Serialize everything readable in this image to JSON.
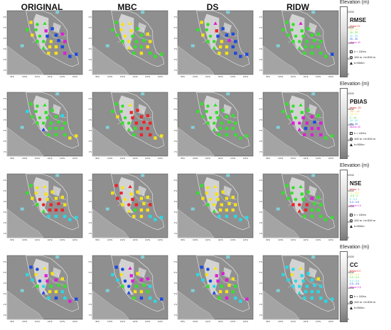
{
  "columns": [
    "ORIGINAL",
    "MBC",
    "DS",
    "RIDW"
  ],
  "elevation_title": "Elevation (m)",
  "elevation_ticks": [
    "2000",
    "1500",
    "1000",
    "500",
    "0"
  ],
  "lat_ticks": [
    "6°N",
    "5°N",
    "4°N",
    "3°N",
    "2°N",
    "1°N"
  ],
  "lon_ticks": [
    "99°E",
    "100°E",
    "101°E",
    "102°E",
    "103°E",
    "104°E"
  ],
  "shape_legend": [
    "h < 100m",
    "100 m <h<500 m",
    "h>500m"
  ],
  "colors": {
    "red": "#e8262b",
    "yellow": "#f4e21a",
    "green": "#35e02c",
    "cyan": "#2ad9e4",
    "blue": "#1c49e2",
    "magenta": "#dc1fd6",
    "orange": "#f59b20"
  },
  "rows": [
    {
      "metric": "RMSE",
      "classes": [
        {
          "label": "below 10",
          "color": "red"
        },
        {
          "label": "10 - 15",
          "color": "yellow"
        },
        {
          "label": "15 - 20",
          "color": "green"
        },
        {
          "label": "20 - 25",
          "color": "cyan"
        },
        {
          "label": "25 - 30",
          "color": "blue"
        },
        {
          "label": "above 30",
          "color": "magenta"
        }
      ]
    },
    {
      "metric": "PBIAS",
      "classes": [
        {
          "label": "below -20",
          "color": "red"
        },
        {
          "label": "-20 - -10",
          "color": "orange"
        },
        {
          "label": "-10 - 0",
          "color": "yellow"
        },
        {
          "label": "0 - 10",
          "color": "green"
        },
        {
          "label": "10 - 20",
          "color": "cyan"
        },
        {
          "label": "20 - 30",
          "color": "blue"
        },
        {
          "label": "above 30",
          "color": "magenta"
        }
      ]
    },
    {
      "metric": "NSE",
      "classes": [
        {
          "label": "below -1",
          "color": "red"
        },
        {
          "label": "-1 - -0.5",
          "color": "yellow"
        },
        {
          "label": "-0.5 - 0",
          "color": "green"
        },
        {
          "label": "0 - 0.3",
          "color": "cyan"
        },
        {
          "label": "0.3 - 0.5",
          "color": "blue"
        },
        {
          "label": "above 0.5",
          "color": "magenta"
        }
      ]
    },
    {
      "metric": "CC",
      "classes": [
        {
          "label": "below 0.2",
          "color": "red"
        },
        {
          "label": "0.2 - 0.3",
          "color": "yellow"
        },
        {
          "label": "0.3 - 0.4",
          "color": "green"
        },
        {
          "label": "0.4 - 0.5",
          "color": "cyan"
        },
        {
          "label": "0.5 - 0.6",
          "color": "blue"
        },
        {
          "label": "above 0.6",
          "color": "magenta"
        }
      ]
    }
  ],
  "chart_data": {
    "type": "scatter",
    "stations": [
      {
        "lon": 100.5,
        "lat": 5.5,
        "elev": "low"
      },
      {
        "lon": 101.0,
        "lat": 5.3,
        "elev": "mid"
      },
      {
        "lon": 101.6,
        "lat": 5.4,
        "elev": "high"
      },
      {
        "lon": 100.2,
        "lat": 4.8,
        "elev": "low"
      },
      {
        "lon": 100.9,
        "lat": 4.8,
        "elev": "mid"
      },
      {
        "lon": 101.7,
        "lat": 4.7,
        "elev": "low"
      },
      {
        "lon": 102.2,
        "lat": 4.9,
        "elev": "low"
      },
      {
        "lon": 100.6,
        "lat": 4.3,
        "elev": "low"
      },
      {
        "lon": 101.2,
        "lat": 4.2,
        "elev": "mid"
      },
      {
        "lon": 101.8,
        "lat": 4.2,
        "elev": "low"
      },
      {
        "lon": 102.5,
        "lat": 4.3,
        "elev": "low"
      },
      {
        "lon": 103.0,
        "lat": 4.4,
        "elev": "low"
      },
      {
        "lon": 101.0,
        "lat": 3.7,
        "elev": "low"
      },
      {
        "lon": 101.5,
        "lat": 3.7,
        "elev": "mid"
      },
      {
        "lon": 102.1,
        "lat": 3.7,
        "elev": "low"
      },
      {
        "lon": 102.7,
        "lat": 3.8,
        "elev": "low"
      },
      {
        "lon": 103.2,
        "lat": 3.7,
        "elev": "low"
      },
      {
        "lon": 101.5,
        "lat": 3.1,
        "elev": "high"
      },
      {
        "lon": 102.0,
        "lat": 3.2,
        "elev": "low"
      },
      {
        "lon": 102.5,
        "lat": 3.2,
        "elev": "low"
      },
      {
        "lon": 103.0,
        "lat": 3.2,
        "elev": "low"
      },
      {
        "lon": 101.9,
        "lat": 2.6,
        "elev": "low"
      },
      {
        "lon": 102.5,
        "lat": 2.6,
        "elev": "low"
      },
      {
        "lon": 103.2,
        "lat": 2.6,
        "elev": "low"
      },
      {
        "lon": 103.6,
        "lat": 2.3,
        "elev": "low"
      },
      {
        "lon": 104.1,
        "lat": 2.5,
        "elev": "low"
      }
    ],
    "panels": [
      {
        "metric": "RMSE",
        "product": "ORIGINAL",
        "values": [
          "yellow",
          "green",
          "green",
          "green",
          "green",
          "magenta",
          "blue",
          "yellow",
          "green",
          "blue",
          "blue",
          "magenta",
          "green",
          "green",
          "yellow",
          "blue",
          "magenta",
          "green",
          "yellow",
          "yellow",
          "blue",
          "yellow",
          "yellow",
          "magenta",
          "blue",
          "blue"
        ]
      },
      {
        "metric": "RMSE",
        "product": "MBC",
        "values": [
          "green",
          "yellow",
          "yellow",
          "green",
          "yellow",
          "yellow",
          "green",
          "green",
          "yellow",
          "green",
          "green",
          "yellow",
          "green",
          "yellow",
          "green",
          "green",
          "yellow",
          "yellow",
          "green",
          "green",
          "yellow",
          "green",
          "yellow",
          "green",
          "green",
          "green"
        ]
      },
      {
        "metric": "RMSE",
        "product": "DS",
        "values": [
          "yellow",
          "green",
          "magenta",
          "green",
          "green",
          "red",
          "blue",
          "yellow",
          "green",
          "blue",
          "blue",
          "blue",
          "green",
          "green",
          "yellow",
          "magenta",
          "blue",
          "green",
          "yellow",
          "yellow",
          "blue",
          "yellow",
          "yellow",
          "blue",
          "blue",
          "blue"
        ]
      },
      {
        "metric": "RMSE",
        "product": "RIDW",
        "values": [
          "green",
          "green",
          "magenta",
          "green",
          "green",
          "green",
          "green",
          "green",
          "green",
          "green",
          "green",
          "green",
          "green",
          "green",
          "green",
          "green",
          "green",
          "green",
          "green",
          "green",
          "green",
          "green",
          "green",
          "green",
          "green",
          "blue"
        ]
      },
      {
        "metric": "PBIAS",
        "product": "ORIGINAL",
        "values": [
          "green",
          "green",
          "green",
          "cyan",
          "green",
          "green",
          "green",
          "green",
          "green",
          "green",
          "green",
          "cyan",
          "green",
          "green",
          "green",
          "green",
          "green",
          "blue",
          "green",
          "green",
          "green",
          "green",
          "green",
          "green",
          "yellow",
          "yellow"
        ]
      },
      {
        "metric": "PBIAS",
        "product": "MBC",
        "values": [
          "green",
          "green",
          "yellow",
          "green",
          "green",
          "red",
          "red",
          "yellow",
          "green",
          "red",
          "red",
          "red",
          "green",
          "green",
          "red",
          "red",
          "red",
          "green",
          "green",
          "red",
          "red",
          "green",
          "red",
          "red",
          "yellow",
          "yellow"
        ]
      },
      {
        "metric": "PBIAS",
        "product": "DS",
        "values": [
          "green",
          "green",
          "green",
          "green",
          "green",
          "green",
          "green",
          "green",
          "green",
          "green",
          "green",
          "green",
          "green",
          "green",
          "green",
          "green",
          "green",
          "green",
          "green",
          "green",
          "green",
          "green",
          "green",
          "green",
          "green",
          "green"
        ]
      },
      {
        "metric": "PBIAS",
        "product": "RIDW",
        "values": [
          "green",
          "green",
          "green",
          "green",
          "green",
          "green",
          "green",
          "green",
          "green",
          "magenta",
          "magenta",
          "green",
          "magenta",
          "magenta",
          "magenta",
          "blue",
          "magenta",
          "magenta",
          "blue",
          "magenta",
          "magenta",
          "magenta",
          "magenta",
          "magenta",
          "green",
          "green"
        ]
      },
      {
        "metric": "NSE",
        "product": "ORIGINAL",
        "values": [
          "green",
          "yellow",
          "yellow",
          "green",
          "yellow",
          "yellow",
          "yellow",
          "yellow",
          "red",
          "yellow",
          "yellow",
          "yellow",
          "green",
          "red",
          "red",
          "red",
          "yellow",
          "green",
          "red",
          "red",
          "red",
          "cyan",
          "cyan",
          "cyan",
          "cyan",
          "cyan"
        ]
      },
      {
        "metric": "NSE",
        "product": "MBC",
        "values": [
          "red",
          "yellow",
          "red",
          "yellow",
          "red",
          "yellow",
          "yellow",
          "red",
          "yellow",
          "red",
          "yellow",
          "yellow",
          "yellow",
          "red",
          "red",
          "yellow",
          "red",
          "yellow",
          "green",
          "yellow",
          "yellow",
          "yellow",
          "yellow",
          "cyan",
          "cyan",
          "cyan"
        ]
      },
      {
        "metric": "NSE",
        "product": "DS",
        "values": [
          "green",
          "yellow",
          "yellow",
          "green",
          "yellow",
          "yellow",
          "yellow",
          "yellow",
          "yellow",
          "yellow",
          "yellow",
          "yellow",
          "green",
          "yellow",
          "yellow",
          "yellow",
          "yellow",
          "green",
          "yellow",
          "yellow",
          "yellow",
          "cyan",
          "cyan",
          "cyan",
          "cyan",
          "cyan"
        ]
      },
      {
        "metric": "NSE",
        "product": "RIDW",
        "values": [
          "green",
          "green",
          "green",
          "green",
          "green",
          "green",
          "green",
          "green",
          "green",
          "green",
          "magenta",
          "green",
          "red",
          "red",
          "red",
          "green",
          "green",
          "red",
          "red",
          "green",
          "green",
          "green",
          "green",
          "green",
          "green",
          "green"
        ]
      },
      {
        "metric": "CC",
        "product": "ORIGINAL",
        "values": [
          "blue",
          "blue",
          "yellow",
          "cyan",
          "yellow",
          "magenta",
          "yellow",
          "cyan",
          "blue",
          "magenta",
          "magenta",
          "yellow",
          "green",
          "cyan",
          "green",
          "green",
          "green",
          "blue",
          "yellow",
          "yellow",
          "cyan",
          "cyan",
          "blue",
          "cyan",
          "magenta",
          "blue"
        ]
      },
      {
        "metric": "CC",
        "product": "MBC",
        "values": [
          "blue",
          "blue",
          "magenta",
          "cyan",
          "yellow",
          "magenta",
          "yellow",
          "cyan",
          "blue",
          "magenta",
          "magenta",
          "magenta",
          "green",
          "blue",
          "green",
          "green",
          "cyan",
          "blue",
          "yellow",
          "yellow",
          "green",
          "green",
          "blue",
          "cyan",
          "cyan",
          "blue"
        ]
      },
      {
        "metric": "CC",
        "product": "DS",
        "values": [
          "blue",
          "blue",
          "yellow",
          "cyan",
          "yellow",
          "magenta",
          "magenta",
          "cyan",
          "blue",
          "magenta",
          "magenta",
          "yellow",
          "green",
          "cyan",
          "green",
          "yellow",
          "green",
          "blue",
          "yellow",
          "yellow",
          "green",
          "green",
          "magenta",
          "cyan",
          "cyan",
          "magenta"
        ]
      },
      {
        "metric": "CC",
        "product": "RIDW",
        "values": [
          "cyan",
          "cyan",
          "yellow",
          "cyan",
          "yellow",
          "cyan",
          "cyan",
          "cyan",
          "cyan",
          "cyan",
          "cyan",
          "yellow",
          "cyan",
          "cyan",
          "cyan",
          "cyan",
          "cyan",
          "cyan",
          "cyan",
          "cyan",
          "cyan",
          "cyan",
          "cyan",
          "cyan",
          "cyan",
          "cyan"
        ]
      }
    ]
  }
}
